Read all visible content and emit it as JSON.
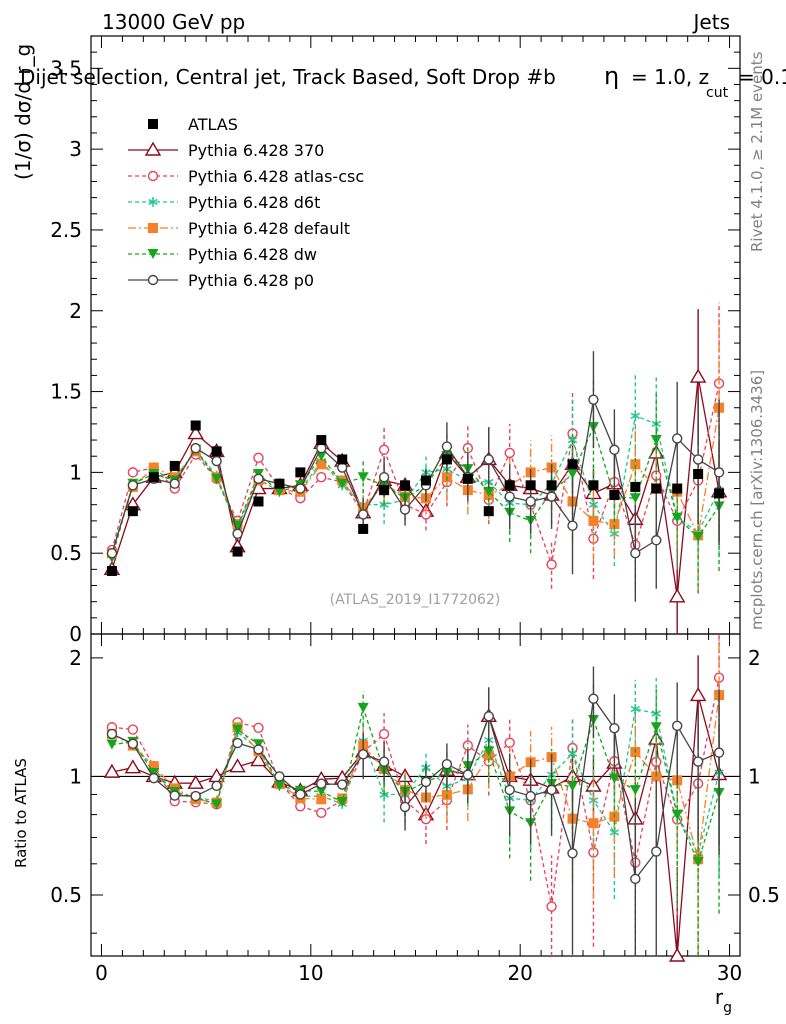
{
  "header": {
    "energy_label": "13000 GeV pp",
    "category_label": "Jets",
    "plot_title": "Dijet selection, Central jet, Track Based, Soft Drop #b",
    "title_params": "= 1.0, z",
    "title_sub": "cut",
    "title_end": "= 0.1",
    "rivet_label": "Rivet 4.1.0, ≥ 2.1M events",
    "mcplots_label": "mcplots.cern.ch [arXiv:1306.3436]",
    "analysis_id": "(ATLAS_2019_I1772062)"
  },
  "chart_data": {
    "type": "line",
    "title": "Dijet selection, Central jet, Track Based, Soft Drop #b = 1.0, z_cut = 0.1",
    "xlabel": "r_g",
    "ylabel": "(1/σ) dσ/d r_g",
    "ratio_ylabel": "Ratio to ATLAS",
    "xlim": [
      -0.5,
      30.5
    ],
    "ylim": [
      0,
      3.7
    ],
    "ratio_ylim": [
      0.35,
      2.3
    ],
    "x_ticks": [
      "0",
      "10",
      "20",
      "30"
    ],
    "y_ticks": [
      "0",
      "0.5",
      "1",
      "1.5",
      "2",
      "2.5",
      "3",
      "3.5"
    ],
    "ratio_ticks": [
      "0.5",
      "1",
      "2"
    ],
    "x": [
      0.5,
      1.5,
      2.5,
      3.5,
      4.5,
      5.5,
      6.5,
      7.5,
      8.5,
      9.5,
      10.5,
      11.5,
      12.5,
      13.5,
      14.5,
      15.5,
      16.5,
      17.5,
      18.5,
      19.5,
      20.5,
      21.5,
      22.5,
      23.5,
      24.5,
      25.5,
      26.5,
      27.5,
      28.5,
      29.5
    ],
    "data": {
      "name": "ATLAS",
      "color": "#000000",
      "values": [
        0.39,
        0.76,
        0.97,
        1.04,
        1.29,
        1.13,
        0.51,
        0.82,
        0.93,
        1.0,
        1.2,
        1.08,
        0.65,
        0.89,
        0.92,
        0.95,
        1.08,
        0.96,
        0.76,
        0.92,
        0.92,
        0.92,
        1.05,
        0.92,
        0.86,
        0.91,
        0.9,
        0.9,
        0.99,
        0.87
      ]
    },
    "series": [
      {
        "name": "Pythia 6.428 370",
        "color": "#8b0a1e",
        "dash": "",
        "marker": "triangle-open",
        "values": [
          0.4,
          0.8,
          0.97,
          1.0,
          1.24,
          1.13,
          0.54,
          0.9,
          0.9,
          0.92,
          1.18,
          1.07,
          0.75,
          0.95,
          0.92,
          0.76,
          1.12,
          0.97,
          1.08,
          0.92,
          0.9,
          0.86,
          1.05,
          0.87,
          0.93,
          0.71,
          1.12,
          0.23,
          1.59,
          0.88
        ],
        "errors": [
          0,
          0,
          0,
          0,
          0,
          0,
          0,
          0,
          0,
          0,
          0,
          0,
          0,
          0,
          0,
          0,
          0,
          0,
          0.2,
          0,
          0,
          0,
          0.15,
          0.15,
          0.15,
          0.2,
          0.2,
          0.3,
          0.42,
          0.3
        ]
      },
      {
        "name": "Pythia 6.428 atlas-csc",
        "color": "#e8415c",
        "dash": "4,3",
        "marker": "circle-open",
        "values": [
          0.52,
          1.0,
          1.03,
          0.9,
          1.11,
          0.96,
          0.7,
          1.09,
          0.9,
          0.84,
          0.97,
          0.94,
          0.75,
          1.14,
          0.8,
          0.74,
          0.94,
          1.15,
          0.83,
          1.12,
          0.8,
          0.43,
          1.24,
          0.59,
          0.94,
          0.55,
          0.98,
          0.7,
          0.95,
          1.55
        ],
        "errors": [
          0,
          0,
          0,
          0,
          0,
          0,
          0,
          0,
          0,
          0,
          0,
          0,
          0.1,
          0.15,
          0.1,
          0.1,
          0.15,
          0.15,
          0.15,
          0.18,
          0.2,
          0.15,
          0.25,
          0.25,
          0.2,
          0.25,
          0.25,
          0.3,
          0.35,
          0.5
        ]
      },
      {
        "name": "Pythia 6.428 d6t",
        "color": "#1ec88c",
        "dash": "4,3",
        "marker": "star",
        "values": [
          0.5,
          0.92,
          1.02,
          0.94,
          1.14,
          0.98,
          0.66,
          0.96,
          0.88,
          0.89,
          1.07,
          0.92,
          0.8,
          0.8,
          0.83,
          1.0,
          1.02,
          0.95,
          0.94,
          0.81,
          0.8,
          0.93,
          1.2,
          0.8,
          0.62,
          1.35,
          1.3,
          0.72,
          0.63,
          0.89
        ],
        "errors": [
          0,
          0,
          0,
          0,
          0,
          0,
          0,
          0,
          0,
          0,
          0,
          0,
          0.1,
          0.12,
          0.1,
          0.1,
          0.15,
          0.15,
          0.15,
          0.18,
          0.2,
          0.15,
          0.25,
          0.25,
          0.2,
          0.25,
          0.3,
          0.3,
          0.35,
          0.4
        ]
      },
      {
        "name": "Pythia 6.428 default",
        "color": "#f5822a",
        "dash": "8,3,2,3",
        "marker": "square",
        "values": [
          0.5,
          0.91,
          1.03,
          0.97,
          1.13,
          0.97,
          0.68,
          0.95,
          0.89,
          0.88,
          1.05,
          0.95,
          0.78,
          0.93,
          0.85,
          0.84,
          0.97,
          0.89,
          0.86,
          0.92,
          1.0,
          1.03,
          0.82,
          0.7,
          0.68,
          1.05,
          0.9,
          0.88,
          0.61,
          1.4
        ],
        "errors": [
          0,
          0,
          0,
          0,
          0,
          0,
          0,
          0,
          0,
          0,
          0,
          0,
          0.1,
          0.12,
          0.1,
          0.1,
          0.15,
          0.15,
          0.15,
          0.18,
          0.2,
          0.2,
          0.25,
          0.25,
          0.2,
          0.25,
          0.3,
          0.3,
          0.35,
          0.55
        ]
      },
      {
        "name": "Pythia 6.428 dw",
        "color": "#16a61c",
        "dash": "4,3",
        "marker": "triangle-down",
        "values": [
          0.47,
          0.93,
          0.99,
          0.95,
          1.14,
          0.96,
          0.67,
          0.99,
          0.88,
          0.92,
          1.1,
          0.93,
          0.97,
          0.92,
          0.84,
          0.92,
          1.1,
          1.02,
          0.88,
          0.75,
          0.7,
          0.88,
          0.99,
          1.28,
          0.85,
          0.84,
          1.2,
          0.72,
          0.6,
          0.79
        ],
        "errors": [
          0,
          0,
          0,
          0,
          0,
          0,
          0,
          0,
          0,
          0,
          0,
          0,
          0.1,
          0.12,
          0.1,
          0.1,
          0.15,
          0.15,
          0.15,
          0.18,
          0.2,
          0.2,
          0.25,
          0.3,
          0.2,
          0.25,
          0.3,
          0.3,
          0.35,
          0.4
        ]
      },
      {
        "name": "Pythia 6.428 p0",
        "color": "#444444",
        "dash": "",
        "marker": "circle-open",
        "values": [
          0.5,
          0.92,
          0.96,
          0.93,
          1.15,
          1.07,
          0.62,
          0.96,
          0.93,
          0.9,
          1.15,
          1.03,
          0.74,
          0.97,
          0.77,
          0.92,
          1.16,
          0.97,
          1.08,
          0.85,
          0.82,
          0.85,
          0.67,
          1.45,
          1.14,
          0.5,
          0.58,
          1.21,
          1.08,
          1.0
        ],
        "errors": [
          0,
          0,
          0,
          0,
          0,
          0,
          0,
          0,
          0,
          0,
          0,
          0,
          0.1,
          0.12,
          0.1,
          0.1,
          0.15,
          0.15,
          0.18,
          0.2,
          0.2,
          0.2,
          0.3,
          0.3,
          0.25,
          0.3,
          0.3,
          0.35,
          0.4,
          0.45
        ]
      }
    ]
  }
}
